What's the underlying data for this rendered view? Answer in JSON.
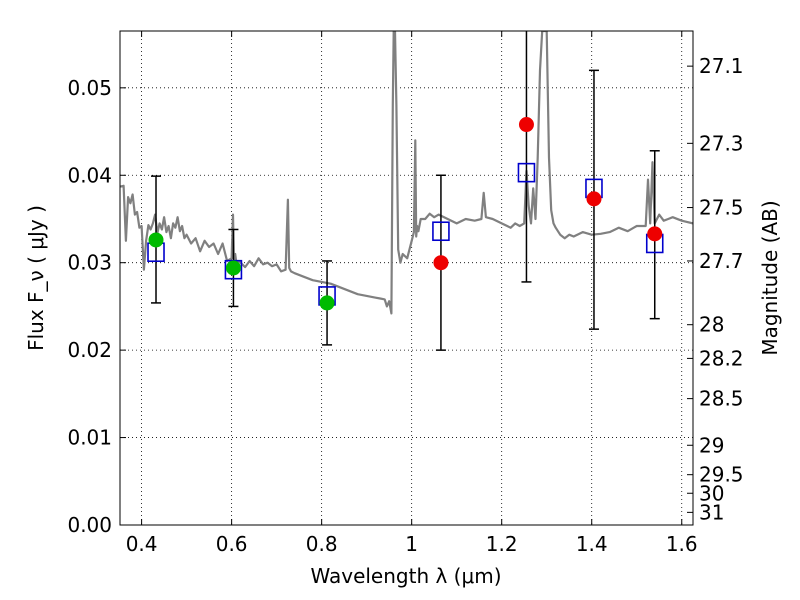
{
  "chart_data": {
    "type": "scatter",
    "xlabel": "Wavelength  λ (μm)",
    "ylabel": "Flux  F_ν  ( μJy )",
    "ylabel_right": "Magnitude (AB)",
    "xlim": [
      0.352,
      1.625
    ],
    "ylim": [
      0,
      0.0565
    ],
    "grid": true,
    "x_ticks": [
      0.4,
      0.6,
      0.8,
      1.0,
      1.2,
      1.4,
      1.6
    ],
    "x_tick_labels": [
      "0.4",
      "0.6",
      "0.8",
      "1",
      "1.2",
      "1.4",
      "1.6"
    ],
    "y_ticks": [
      0.0,
      0.01,
      0.02,
      0.03,
      0.04,
      0.05
    ],
    "y_tick_labels": [
      "0.00",
      "0.01",
      "0.02",
      "0.03",
      "0.04",
      "0.05"
    ],
    "right_ticks": [
      {
        "label": "27.1",
        "mag": 27.1
      },
      {
        "label": "27.3",
        "mag": 27.3
      },
      {
        "label": "27.5",
        "mag": 27.5
      },
      {
        "label": "27.7",
        "mag": 27.7
      },
      {
        "label": "28",
        "mag": 28
      },
      {
        "label": "28.2",
        "mag": 28.2
      },
      {
        "label": "28.5",
        "mag": 28.5
      },
      {
        "label": "29",
        "mag": 29
      },
      {
        "label": "29.5",
        "mag": 29.5
      },
      {
        "label": "30",
        "mag": 30
      },
      {
        "label": "31",
        "mag": 31
      }
    ],
    "series": [
      {
        "kind": "model_spectrum",
        "color": "#808080",
        "x": [
          0.352,
          0.36,
          0.365,
          0.37,
          0.375,
          0.38,
          0.385,
          0.39,
          0.395,
          0.4,
          0.405,
          0.41,
          0.415,
          0.42,
          0.425,
          0.43,
          0.435,
          0.44,
          0.445,
          0.45,
          0.455,
          0.46,
          0.465,
          0.47,
          0.475,
          0.48,
          0.485,
          0.49,
          0.495,
          0.5,
          0.51,
          0.52,
          0.53,
          0.54,
          0.55,
          0.56,
          0.57,
          0.58,
          0.59,
          0.6,
          0.603,
          0.605,
          0.608,
          0.61,
          0.62,
          0.63,
          0.64,
          0.65,
          0.66,
          0.67,
          0.68,
          0.69,
          0.7,
          0.71,
          0.72,
          0.725,
          0.728,
          0.732,
          0.74,
          0.76,
          0.78,
          0.8,
          0.82,
          0.84,
          0.86,
          0.88,
          0.9,
          0.92,
          0.93,
          0.94,
          0.945,
          0.95,
          0.955,
          0.958,
          0.96,
          0.963,
          0.966,
          0.97,
          0.975,
          0.98,
          0.99,
          1.0,
          1.005,
          1.008,
          1.01,
          1.012,
          1.015,
          1.02,
          1.03,
          1.04,
          1.05,
          1.06,
          1.08,
          1.1,
          1.12,
          1.14,
          1.155,
          1.16,
          1.165,
          1.18,
          1.2,
          1.22,
          1.23,
          1.24,
          1.25,
          1.255,
          1.26,
          1.265,
          1.27,
          1.275,
          1.28,
          1.285,
          1.29,
          1.295,
          1.3,
          1.305,
          1.31,
          1.315,
          1.32,
          1.33,
          1.34,
          1.35,
          1.36,
          1.38,
          1.4,
          1.42,
          1.44,
          1.46,
          1.48,
          1.5,
          1.52,
          1.525,
          1.53,
          1.535,
          1.54,
          1.55,
          1.56,
          1.57,
          1.58,
          1.6,
          1.625
        ],
        "y": [
          0.0387,
          0.0388,
          0.0325,
          0.0375,
          0.0368,
          0.0378,
          0.0355,
          0.0358,
          0.034,
          0.0342,
          0.0292,
          0.0325,
          0.0343,
          0.0338,
          0.0345,
          0.0355,
          0.0334,
          0.0345,
          0.0338,
          0.0352,
          0.0335,
          0.0342,
          0.0328,
          0.0345,
          0.034,
          0.0352,
          0.0336,
          0.0342,
          0.0328,
          0.0332,
          0.0322,
          0.0328,
          0.0313,
          0.0325,
          0.0318,
          0.0322,
          0.031,
          0.0322,
          0.0302,
          0.0305,
          0.0355,
          0.03,
          0.031,
          0.0302,
          0.03,
          0.0295,
          0.0302,
          0.0296,
          0.0305,
          0.0298,
          0.03,
          0.0296,
          0.0298,
          0.029,
          0.0292,
          0.0372,
          0.0294,
          0.029,
          0.0288,
          0.0284,
          0.028,
          0.0278,
          0.0276,
          0.0272,
          0.0268,
          0.0264,
          0.0262,
          0.026,
          0.0259,
          0.0258,
          0.025,
          0.0256,
          0.0242,
          0.048,
          0.0565,
          0.0565,
          0.048,
          0.0315,
          0.03,
          0.031,
          0.0305,
          0.0325,
          0.0335,
          0.044,
          0.033,
          0.0342,
          0.0336,
          0.035,
          0.035,
          0.0356,
          0.0352,
          0.0355,
          0.035,
          0.0345,
          0.035,
          0.0348,
          0.035,
          0.038,
          0.0352,
          0.035,
          0.0345,
          0.034,
          0.0345,
          0.0342,
          0.0345,
          0.0405,
          0.0365,
          0.0345,
          0.0385,
          0.035,
          0.042,
          0.052,
          0.0565,
          0.0565,
          0.0565,
          0.042,
          0.036,
          0.0345,
          0.034,
          0.0332,
          0.0328,
          0.0332,
          0.033,
          0.0335,
          0.0332,
          0.0333,
          0.0335,
          0.034,
          0.0336,
          0.0342,
          0.0342,
          0.0395,
          0.0345,
          0.0415,
          0.0345,
          0.0355,
          0.0348,
          0.035,
          0.0352,
          0.0348,
          0.0345
        ]
      },
      {
        "kind": "model_bandpass",
        "marker": "open-square",
        "color": "#0000cc",
        "x": [
          0.432,
          0.604,
          0.812,
          1.065,
          1.255,
          1.405,
          1.54
        ],
        "y": [
          0.0312,
          0.0292,
          0.0262,
          0.0336,
          0.0403,
          0.0385,
          0.0322
        ]
      },
      {
        "kind": "observed",
        "marker": "filled-circle",
        "color": "#00bb00",
        "x": [
          0.432,
          0.604,
          0.812
        ],
        "y": [
          0.0326,
          0.0294,
          0.0254
        ],
        "err_low": [
          0.0254,
          0.025,
          0.0206
        ],
        "err_high": [
          0.0399,
          0.0338,
          0.0302
        ]
      },
      {
        "kind": "observed",
        "marker": "filled-circle",
        "color": "#ee0000",
        "x": [
          1.065,
          1.255,
          1.405,
          1.54
        ],
        "y": [
          0.03,
          0.0458,
          0.0373,
          0.0333
        ],
        "err_low": [
          0.02,
          0.0278,
          0.0224,
          0.0236
        ],
        "err_high": [
          0.04,
          0.0565,
          0.052,
          0.0428
        ]
      }
    ]
  }
}
